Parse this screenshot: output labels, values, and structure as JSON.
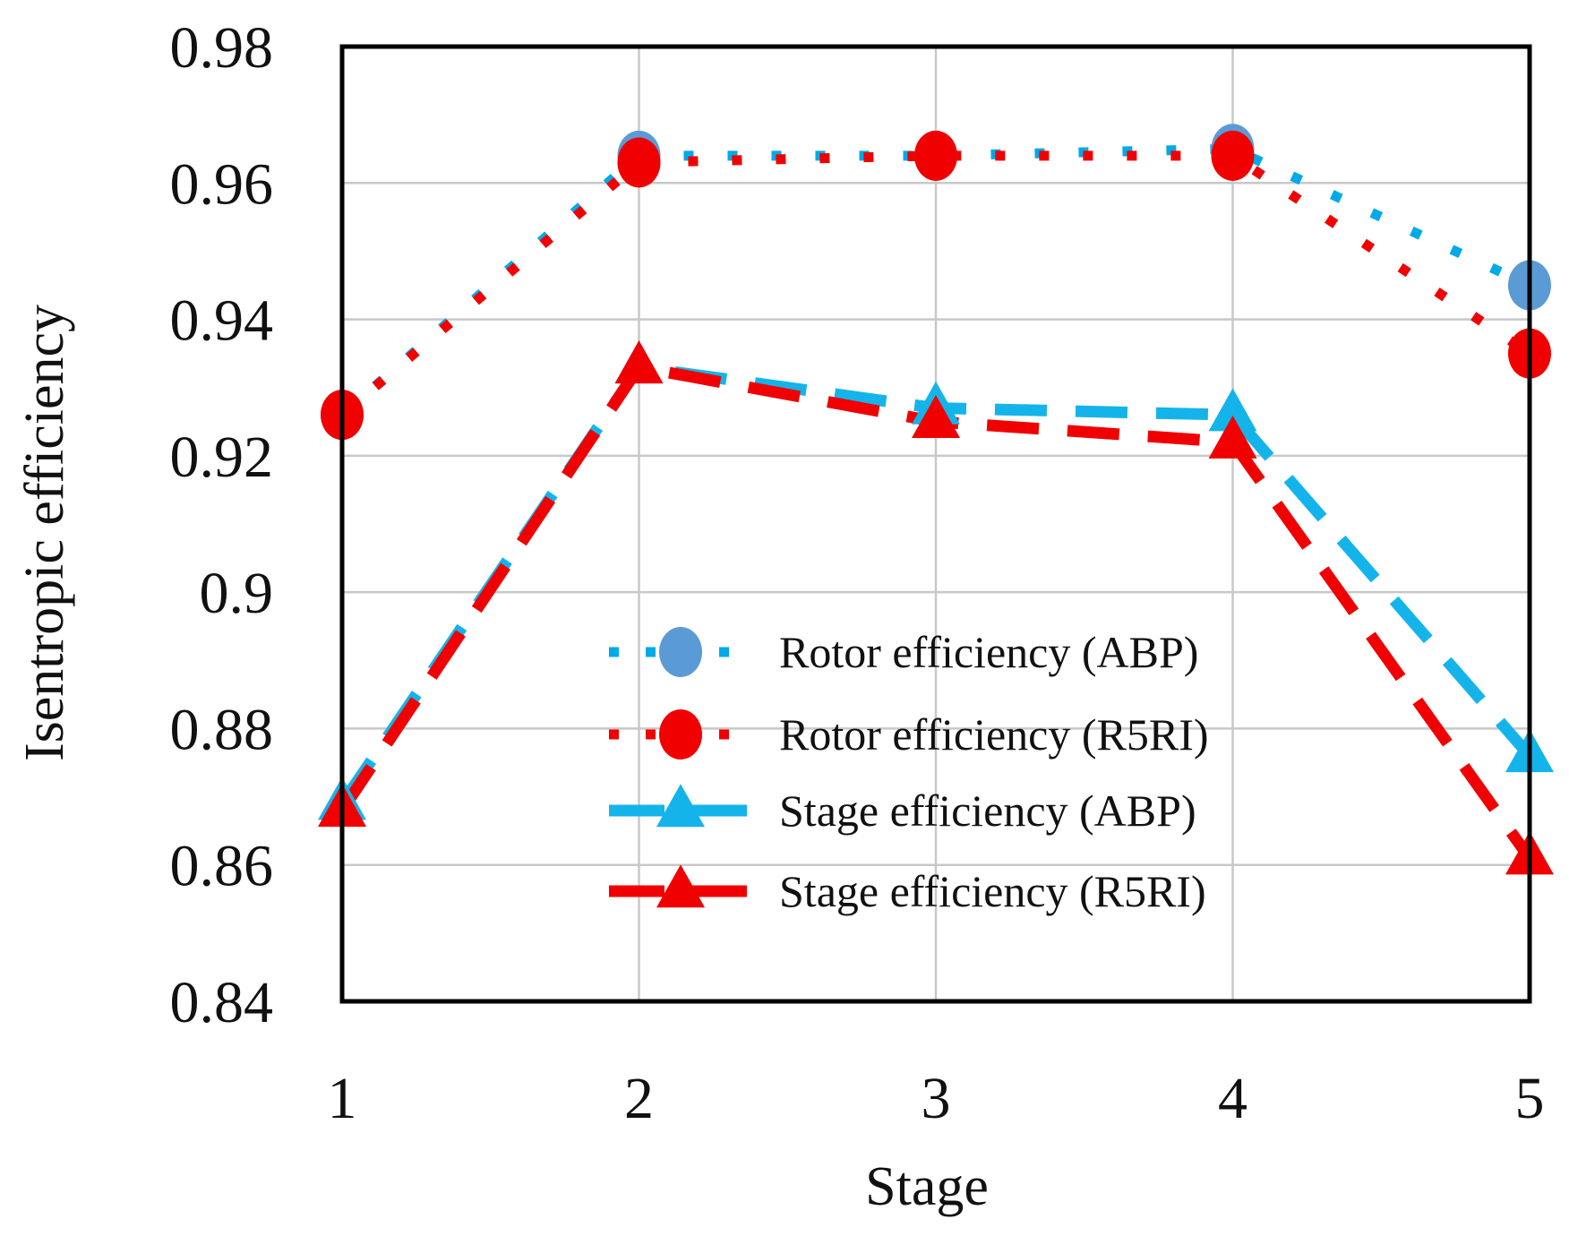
{
  "chart_data": {
    "type": "line",
    "title": "",
    "xlabel": "Stage",
    "ylabel": "Isentropic efficiency",
    "x": [
      1,
      2,
      3,
      4,
      5
    ],
    "x_tick_labels": [
      "1",
      "2",
      "3",
      "4",
      "5"
    ],
    "ylim": [
      0.84,
      0.98
    ],
    "y_ticks": [
      0.84,
      0.86,
      0.88,
      0.9,
      0.92,
      0.94,
      0.96,
      0.98
    ],
    "y_tick_labels": [
      "0.84",
      "0.86",
      "0.88",
      "0.9",
      "0.92",
      "0.94",
      "0.96",
      "0.98"
    ],
    "grid": true,
    "legend_position": "center-right",
    "series": [
      {
        "name": "Rotor efficiency (ABP)",
        "values": [
          0.926,
          0.964,
          0.964,
          0.965,
          0.945
        ],
        "line_style": "dotted",
        "marker": "circle",
        "line_color": "#00a9e8",
        "marker_color": "#5b9bd5"
      },
      {
        "name": "Rotor efficiency (R5RI)",
        "values": [
          0.926,
          0.963,
          0.964,
          0.964,
          0.935
        ],
        "line_style": "dotted",
        "marker": "circle",
        "line_color": "#f00000",
        "marker_color": "#f00000"
      },
      {
        "name": "Stage efficiency (ABP)",
        "values": [
          0.869,
          0.933,
          0.927,
          0.926,
          0.876
        ],
        "line_style": "dashed",
        "marker": "triangle",
        "line_color": "#14b4ea",
        "marker_color": "#14b4ea"
      },
      {
        "name": "Stage efficiency (R5RI)",
        "values": [
          0.868,
          0.933,
          0.925,
          0.922,
          0.861
        ],
        "line_style": "dashed",
        "marker": "triangle",
        "line_color": "#f00000",
        "marker_color": "#f00000"
      }
    ]
  }
}
